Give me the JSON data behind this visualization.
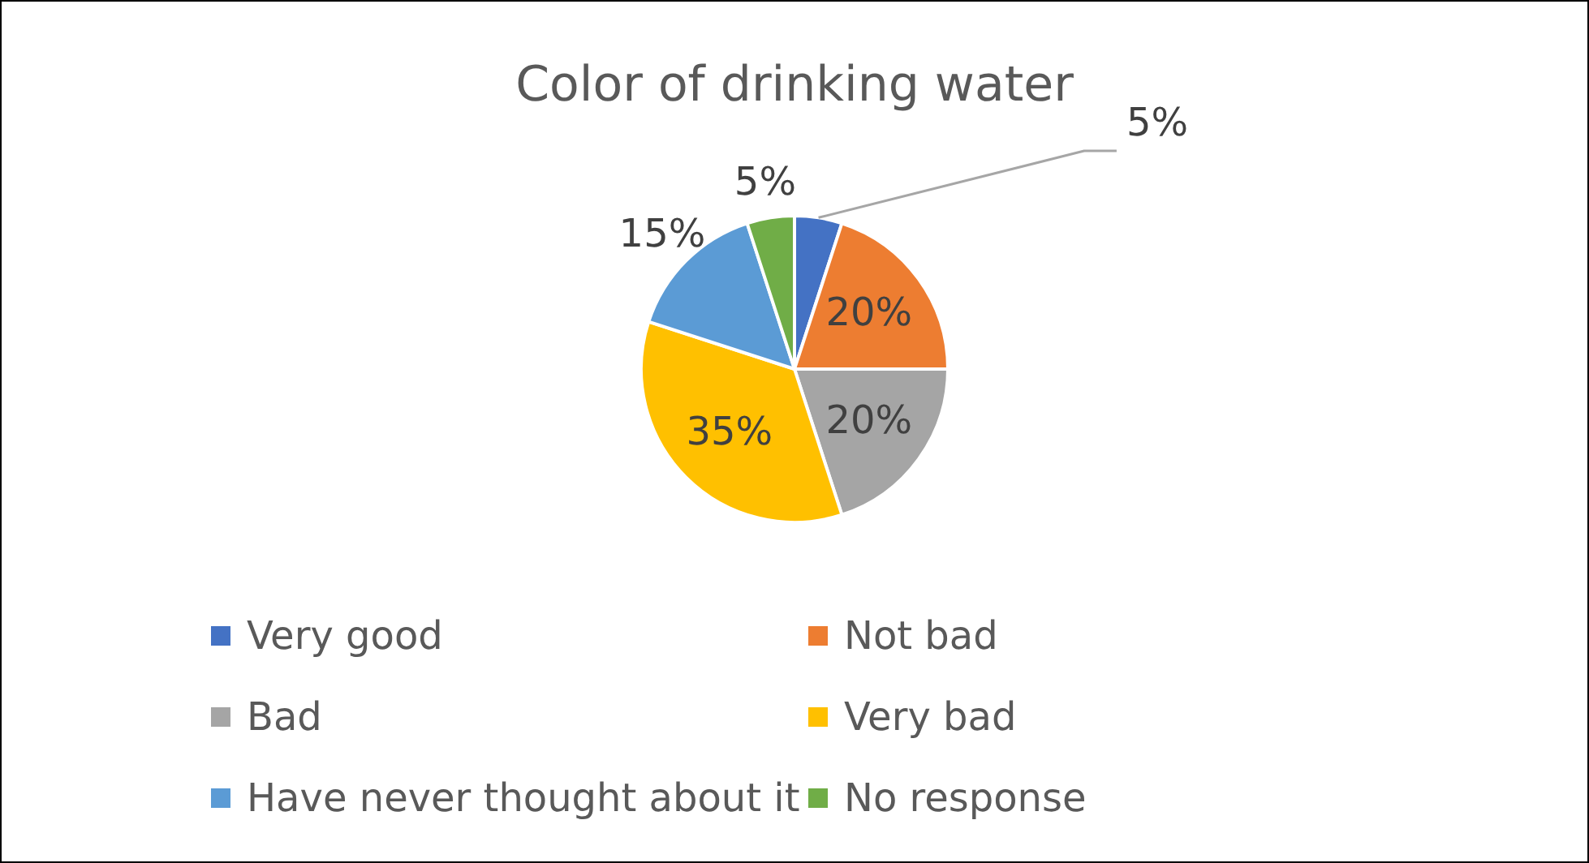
{
  "chart_data": {
    "type": "pie",
    "title": "Color of drinking water",
    "categories": [
      "Very good",
      "Not bad",
      "Bad",
      "Very bad",
      "Have never thought about it",
      "No response"
    ],
    "values": [
      5,
      20,
      20,
      35,
      15,
      5
    ],
    "value_labels": [
      "5%",
      "20%",
      "20%",
      "35%",
      "15%",
      "5%"
    ],
    "colors": [
      "#4472c4",
      "#ed7d31",
      "#a5a5a5",
      "#ffc000",
      "#5b9bd5",
      "#70ad47"
    ],
    "legend": "bottom"
  }
}
